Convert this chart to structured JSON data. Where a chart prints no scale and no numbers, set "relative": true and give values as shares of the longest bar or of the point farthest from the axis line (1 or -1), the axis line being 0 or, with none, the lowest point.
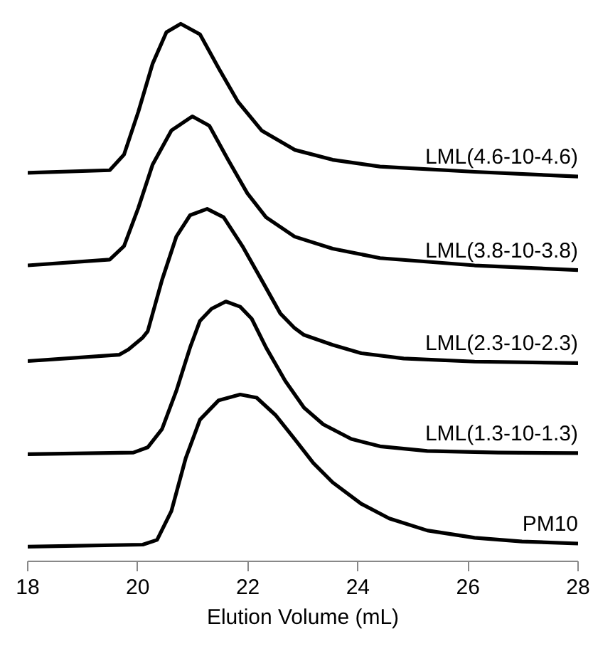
{
  "chart_data": {
    "type": "line",
    "relative": true,
    "xlabel": "Elution Volume (mL)",
    "xlim": [
      18,
      28
    ],
    "xticks": [
      18,
      20,
      22,
      24,
      26,
      28
    ],
    "grid": false,
    "series": [
      {
        "name": "LML(4.6-10-4.6)",
        "color": "#000000",
        "x": [
          18.0,
          19.49,
          19.75,
          20.01,
          20.27,
          20.52,
          20.78,
          21.13,
          21.47,
          21.82,
          22.25,
          22.85,
          23.54,
          24.4,
          26.12,
          28.0
        ],
        "values": [
          0.715,
          0.72,
          0.75,
          0.832,
          0.924,
          0.984,
          1.0,
          0.98,
          0.915,
          0.851,
          0.796,
          0.759,
          0.74,
          0.727,
          0.717,
          0.708
        ]
      },
      {
        "name": "LML(3.8-10-3.8)",
        "color": "#000000",
        "x": [
          18.0,
          19.49,
          19.75,
          20.01,
          20.27,
          20.61,
          20.99,
          21.3,
          21.64,
          21.99,
          22.33,
          22.85,
          23.54,
          24.4,
          26.12,
          28.0
        ],
        "values": [
          0.538,
          0.549,
          0.575,
          0.648,
          0.731,
          0.796,
          0.823,
          0.805,
          0.74,
          0.676,
          0.63,
          0.593,
          0.57,
          0.552,
          0.538,
          0.529
        ]
      },
      {
        "name": "LML(2.3-10-2.3)",
        "color": "#000000",
        "x": [
          18.0,
          19.66,
          19.83,
          20.09,
          20.18,
          20.44,
          20.7,
          20.95,
          21.26,
          21.56,
          21.9,
          22.25,
          22.59,
          22.85,
          23.02,
          23.54,
          24.06,
          24.83,
          26.12,
          28.0
        ],
        "values": [
          0.355,
          0.367,
          0.377,
          0.4,
          0.412,
          0.51,
          0.593,
          0.634,
          0.646,
          0.63,
          0.575,
          0.51,
          0.446,
          0.418,
          0.405,
          0.386,
          0.37,
          0.36,
          0.354,
          0.351
        ]
      },
      {
        "name": "LML(1.3-10-1.3)",
        "color": "#000000",
        "x": [
          18.0,
          19.92,
          20.18,
          20.44,
          20.7,
          20.95,
          21.13,
          21.34,
          21.6,
          21.86,
          22.07,
          22.33,
          22.68,
          23.02,
          23.37,
          23.88,
          24.4,
          25.26,
          26.55,
          28.0
        ],
        "values": [
          0.177,
          0.18,
          0.19,
          0.225,
          0.298,
          0.381,
          0.432,
          0.455,
          0.469,
          0.459,
          0.436,
          0.381,
          0.317,
          0.266,
          0.234,
          0.206,
          0.192,
          0.183,
          0.18,
          0.179
        ]
      },
      {
        "name": "PM10",
        "color": "#000000",
        "x": [
          18.0,
          20.09,
          20.35,
          20.61,
          20.87,
          21.13,
          21.47,
          21.86,
          22.16,
          22.5,
          22.85,
          23.19,
          23.54,
          24.06,
          24.57,
          25.26,
          26.12,
          26.98,
          28.0
        ],
        "values": [
          0.0,
          0.004,
          0.013,
          0.068,
          0.169,
          0.243,
          0.28,
          0.291,
          0.285,
          0.252,
          0.206,
          0.16,
          0.123,
          0.082,
          0.054,
          0.031,
          0.017,
          0.01,
          0.006
        ]
      }
    ]
  }
}
